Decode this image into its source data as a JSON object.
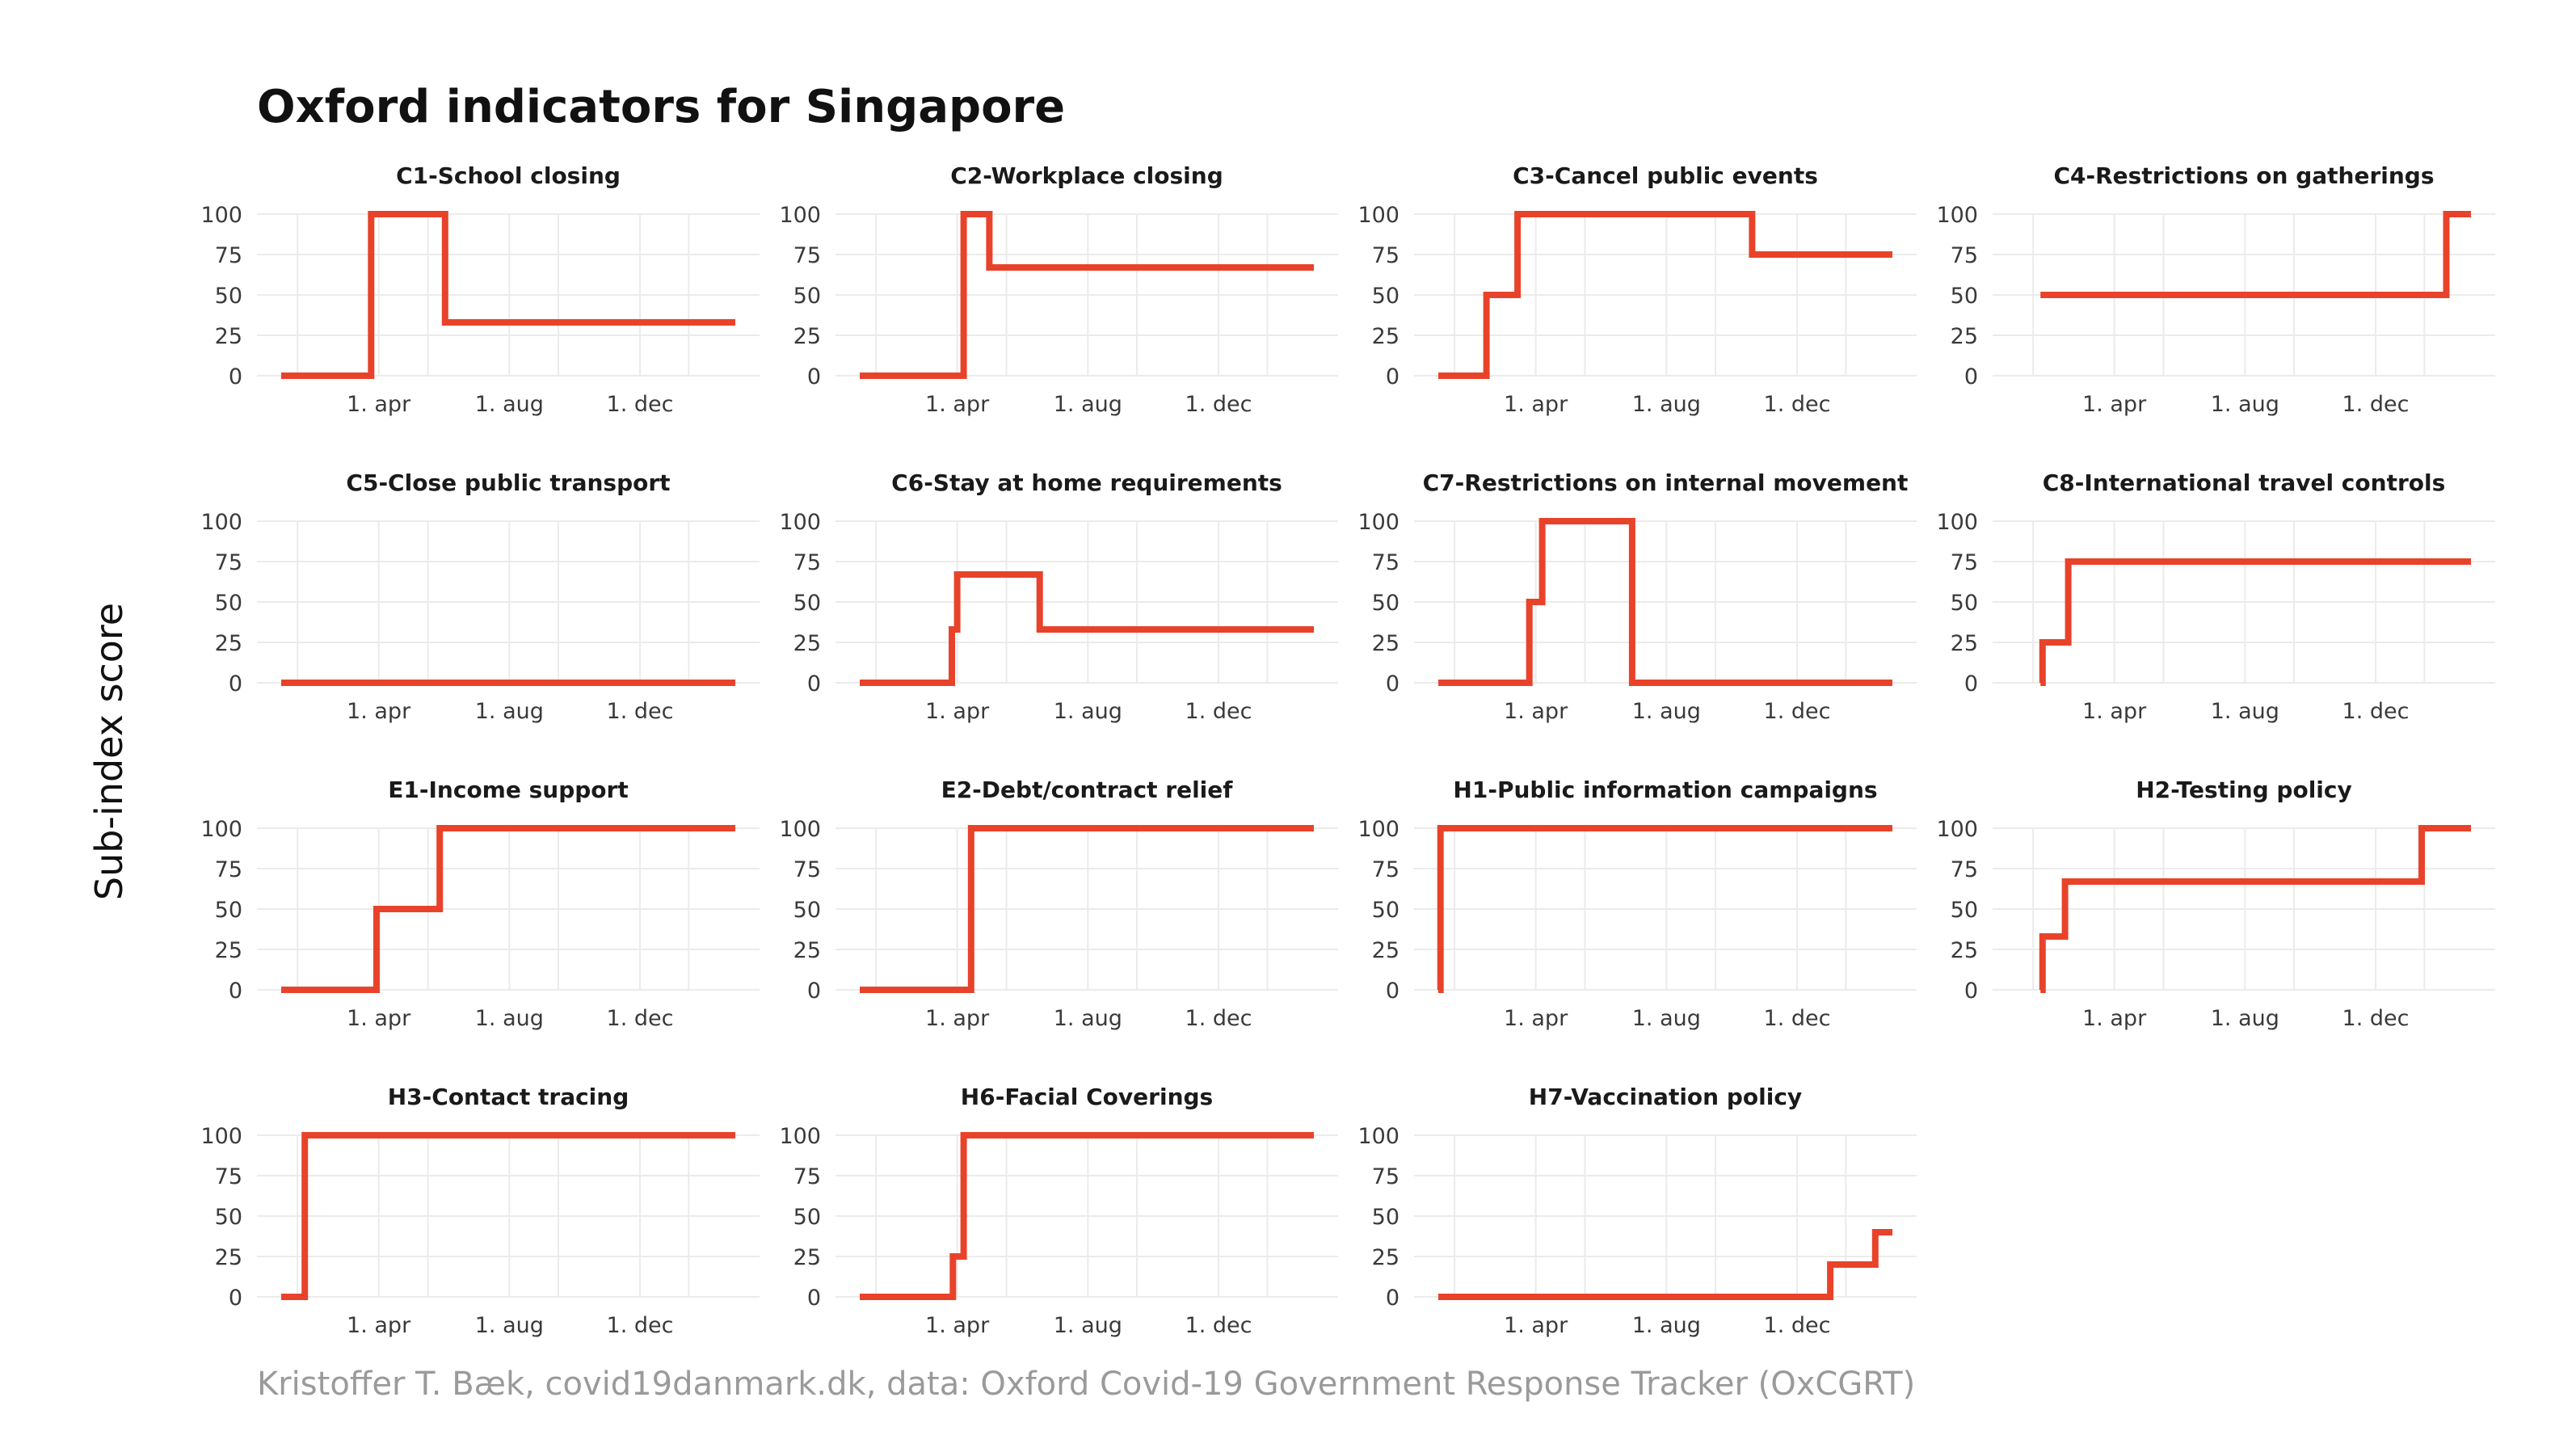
{
  "title": "Oxford indicators for Singapore",
  "ylabel": "Sub-index score",
  "caption": "Kristoffer T. Bæk, covid19danmark.dk, data: Oxford Covid-19 Government Response Tracker (OxCGRT)",
  "colors": {
    "series": "#e8432a",
    "grid": "#ebebeb",
    "text": "#1a1a1a"
  },
  "chart_data": [
    {
      "type": "line",
      "title": "C1-School closing",
      "ylim": [
        0,
        100
      ],
      "y_ticks": [
        0,
        25,
        50,
        75,
        100
      ],
      "x_ticks": [
        "1. apr",
        "1. aug",
        "1. dec"
      ],
      "x_start": "2020-01-01",
      "x_end": "2021-02-28",
      "steps": [
        [
          "2020-01-01",
          0
        ],
        [
          "2020-03-25",
          100
        ],
        [
          "2020-06-02",
          33
        ],
        [
          "2021-02-28",
          33
        ]
      ]
    },
    {
      "type": "line",
      "title": "C2-Workplace closing",
      "ylim": [
        0,
        100
      ],
      "y_ticks": [
        0,
        25,
        50,
        75,
        100
      ],
      "x_ticks": [
        "1. apr",
        "1. aug",
        "1. dec"
      ],
      "x_start": "2020-01-01",
      "x_end": "2021-02-28",
      "steps": [
        [
          "2020-01-01",
          0
        ],
        [
          "2020-04-07",
          100
        ],
        [
          "2020-05-01",
          67
        ],
        [
          "2021-02-28",
          67
        ]
      ]
    },
    {
      "type": "line",
      "title": "C3-Cancel public events",
      "ylim": [
        0,
        100
      ],
      "y_ticks": [
        0,
        25,
        50,
        75,
        100
      ],
      "x_ticks": [
        "1. apr",
        "1. aug",
        "1. dec"
      ],
      "x_start": "2020-01-01",
      "x_end": "2021-02-28",
      "steps": [
        [
          "2020-01-01",
          0
        ],
        [
          "2020-02-15",
          50
        ],
        [
          "2020-03-15",
          100
        ],
        [
          "2020-10-20",
          75
        ],
        [
          "2021-02-28",
          75
        ]
      ]
    },
    {
      "type": "line",
      "title": "C4-Restrictions on gatherings",
      "ylim": [
        0,
        100
      ],
      "y_ticks": [
        0,
        25,
        50,
        75,
        100
      ],
      "x_ticks": [
        "1. apr",
        "1. aug",
        "1. dec"
      ],
      "x_start": "2020-01-01",
      "x_end": "2021-02-28",
      "steps": [
        [
          "2020-01-23",
          50
        ],
        [
          "2021-02-05",
          100
        ],
        [
          "2021-02-28",
          100
        ]
      ]
    },
    {
      "type": "line",
      "title": "C5-Close public transport",
      "ylim": [
        0,
        100
      ],
      "y_ticks": [
        0,
        25,
        50,
        75,
        100
      ],
      "x_ticks": [
        "1. apr",
        "1. aug",
        "1. dec"
      ],
      "x_start": "2020-01-01",
      "x_end": "2021-02-28",
      "steps": [
        [
          "2020-01-01",
          0
        ],
        [
          "2021-02-28",
          0
        ]
      ]
    },
    {
      "type": "line",
      "title": "C6-Stay at home requirements",
      "ylim": [
        0,
        100
      ],
      "y_ticks": [
        0,
        25,
        50,
        75,
        100
      ],
      "x_ticks": [
        "1. apr",
        "1. aug",
        "1. dec"
      ],
      "x_start": "2020-01-01",
      "x_end": "2021-02-28",
      "steps": [
        [
          "2020-01-01",
          0
        ],
        [
          "2020-03-27",
          33
        ],
        [
          "2020-04-01",
          67
        ],
        [
          "2020-06-17",
          33
        ],
        [
          "2021-02-28",
          33
        ]
      ]
    },
    {
      "type": "line",
      "title": "C7-Restrictions on internal movement",
      "ylim": [
        0,
        100
      ],
      "y_ticks": [
        0,
        25,
        50,
        75,
        100
      ],
      "x_ticks": [
        "1. apr",
        "1. aug",
        "1. dec"
      ],
      "x_start": "2020-01-01",
      "x_end": "2021-02-28",
      "steps": [
        [
          "2020-01-01",
          0
        ],
        [
          "2020-03-26",
          50
        ],
        [
          "2020-04-07",
          100
        ],
        [
          "2020-06-30",
          0
        ],
        [
          "2021-02-28",
          0
        ]
      ]
    },
    {
      "type": "line",
      "title": "C8-International travel controls",
      "ylim": [
        0,
        100
      ],
      "y_ticks": [
        0,
        25,
        50,
        75,
        100
      ],
      "x_ticks": [
        "1. apr",
        "1. aug",
        "1. dec"
      ],
      "x_start": "2020-01-01",
      "x_end": "2021-02-28",
      "steps": [
        [
          "2020-01-23",
          0
        ],
        [
          "2020-01-25",
          25
        ],
        [
          "2020-02-18",
          75
        ],
        [
          "2021-02-28",
          75
        ]
      ]
    },
    {
      "type": "line",
      "title": "E1-Income support",
      "ylim": [
        0,
        100
      ],
      "y_ticks": [
        0,
        25,
        50,
        75,
        100
      ],
      "x_ticks": [
        "1. apr",
        "1. aug",
        "1. dec"
      ],
      "x_start": "2020-01-01",
      "x_end": "2021-02-28",
      "steps": [
        [
          "2020-01-01",
          0
        ],
        [
          "2020-03-30",
          50
        ],
        [
          "2020-05-28",
          100
        ],
        [
          "2021-02-28",
          100
        ]
      ]
    },
    {
      "type": "line",
      "title": "E2-Debt/contract relief",
      "ylim": [
        0,
        100
      ],
      "y_ticks": [
        0,
        25,
        50,
        75,
        100
      ],
      "x_ticks": [
        "1. apr",
        "1. aug",
        "1. dec"
      ],
      "x_start": "2020-01-01",
      "x_end": "2021-02-28",
      "steps": [
        [
          "2020-01-01",
          0
        ],
        [
          "2020-04-14",
          100
        ],
        [
          "2021-02-28",
          100
        ]
      ]
    },
    {
      "type": "line",
      "title": "H1-Public information campaigns",
      "ylim": [
        0,
        100
      ],
      "y_ticks": [
        0,
        25,
        50,
        75,
        100
      ],
      "x_ticks": [
        "1. apr",
        "1. aug",
        "1. dec"
      ],
      "x_start": "2020-01-01",
      "x_end": "2021-02-28",
      "steps": [
        [
          "2020-01-01",
          0
        ],
        [
          "2020-01-03",
          100
        ],
        [
          "2021-02-28",
          100
        ]
      ]
    },
    {
      "type": "line",
      "title": "H2-Testing policy",
      "ylim": [
        0,
        100
      ],
      "y_ticks": [
        0,
        25,
        50,
        75,
        100
      ],
      "x_ticks": [
        "1. apr",
        "1. aug",
        "1. dec"
      ],
      "x_start": "2020-01-01",
      "x_end": "2021-02-28",
      "steps": [
        [
          "2020-01-23",
          0
        ],
        [
          "2020-01-25",
          33
        ],
        [
          "2020-02-15",
          67
        ],
        [
          "2021-01-13",
          100
        ],
        [
          "2021-02-28",
          100
        ]
      ]
    },
    {
      "type": "line",
      "title": "H3-Contact tracing",
      "ylim": [
        0,
        100
      ],
      "y_ticks": [
        0,
        25,
        50,
        75,
        100
      ],
      "x_ticks": [
        "1. apr",
        "1. aug",
        "1. dec"
      ],
      "x_start": "2020-01-01",
      "x_end": "2021-02-28",
      "steps": [
        [
          "2020-01-01",
          0
        ],
        [
          "2020-01-23",
          100
        ],
        [
          "2021-02-28",
          100
        ]
      ]
    },
    {
      "type": "line",
      "title": "H6-Facial Coverings",
      "ylim": [
        0,
        100
      ],
      "y_ticks": [
        0,
        25,
        50,
        75,
        100
      ],
      "x_ticks": [
        "1. apr",
        "1. aug",
        "1. dec"
      ],
      "x_start": "2020-01-01",
      "x_end": "2021-02-28",
      "steps": [
        [
          "2020-01-01",
          0
        ],
        [
          "2020-03-28",
          25
        ],
        [
          "2020-04-07",
          100
        ],
        [
          "2021-02-28",
          100
        ]
      ]
    },
    {
      "type": "line",
      "title": "H7-Vaccination policy",
      "ylim": [
        0,
        100
      ],
      "y_ticks": [
        0,
        25,
        50,
        75,
        100
      ],
      "x_ticks": [
        "1. apr",
        "1. aug",
        "1. dec"
      ],
      "x_start": "2020-01-01",
      "x_end": "2021-02-28",
      "steps": [
        [
          "2020-01-01",
          0
        ],
        [
          "2021-01-01",
          20
        ],
        [
          "2021-02-12",
          40
        ],
        [
          "2021-02-28",
          40
        ]
      ]
    }
  ]
}
